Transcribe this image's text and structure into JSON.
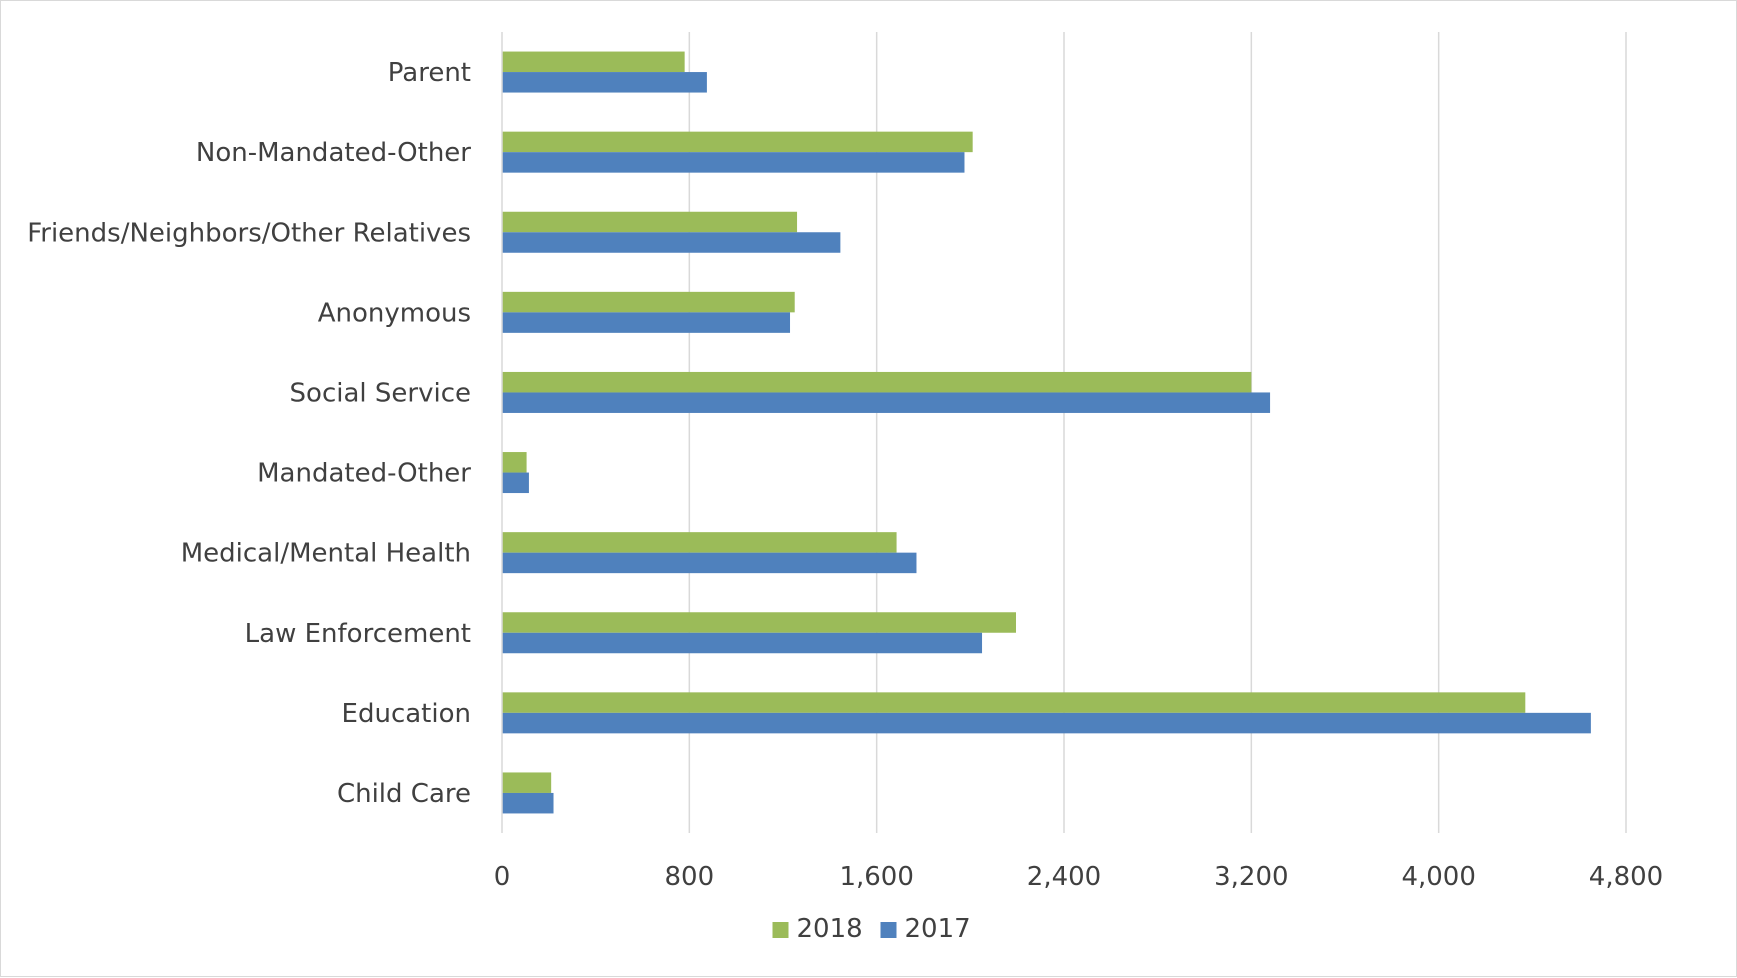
{
  "chart_data": {
    "type": "bar",
    "orientation": "horizontal",
    "categories": [
      "Parent",
      "Non-Mandated-Other",
      "Friends/Neighbors/Other Relatives",
      "Anonymous",
      "Social Service",
      "Mandated-Other",
      "Medical/Mental Health",
      "Law Enforcement",
      "Education",
      "Child Care"
    ],
    "series": [
      {
        "name": "2018",
        "color": "#9BBB59",
        "values": [
          780,
          2010,
          1260,
          1250,
          3200,
          105,
          1685,
          2195,
          4370,
          210
        ]
      },
      {
        "name": "2017",
        "color": "#4F81BD",
        "values": [
          875,
          1975,
          1445,
          1230,
          3280,
          115,
          1770,
          2050,
          4650,
          220
        ]
      }
    ],
    "xlim": [
      0,
      4800
    ],
    "xticks": [
      0,
      800,
      1600,
      2400,
      3200,
      4000,
      4800
    ],
    "xtick_labels": [
      "0",
      "800",
      "1,600",
      "2,400",
      "3,200",
      "4,000",
      "4,800"
    ],
    "title": "",
    "xlabel": "",
    "ylabel": "",
    "grid": "vertical",
    "gridline_color": "#d9d9d9",
    "legend_position": "bottom"
  }
}
